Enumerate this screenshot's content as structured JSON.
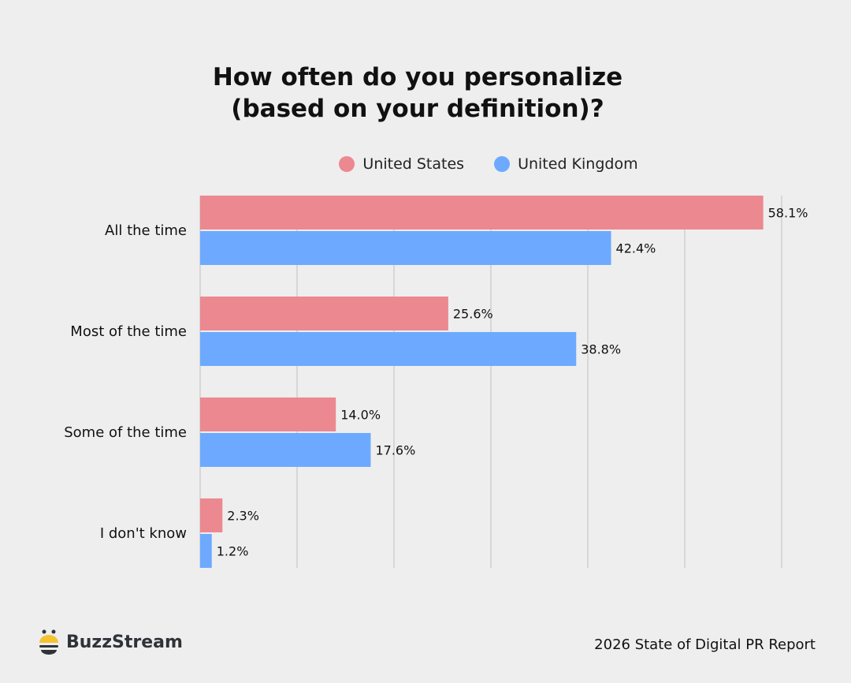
{
  "chart_data": {
    "type": "bar",
    "orientation": "horizontal",
    "title": "How often do you personalize\n(based on your definition)?",
    "title_lines": [
      "How often do you personalize",
      "(based on your definition)?"
    ],
    "categories": [
      "All the time",
      "Most of the time",
      "Some of the time",
      "I don't know"
    ],
    "series": [
      {
        "name": "United States",
        "color": "#ec8890",
        "values": [
          58.1,
          25.6,
          14.0,
          2.3
        ],
        "labels": [
          "58.1%",
          "25.6%",
          "14.0%",
          "2.3%"
        ]
      },
      {
        "name": "United Kingdom",
        "color": "#6daaff",
        "values": [
          42.4,
          38.8,
          17.6,
          1.2
        ],
        "labels": [
          "42.4%",
          "38.8%",
          "17.6%",
          "1.2%"
        ]
      }
    ],
    "xlim": [
      0,
      60
    ],
    "grid": true,
    "xticks_shown": false,
    "legend": "top"
  },
  "brand": {
    "name": "BuzzStream",
    "icon": "bee-icon"
  },
  "footer": {
    "report": "2026 State of Digital PR Report"
  }
}
